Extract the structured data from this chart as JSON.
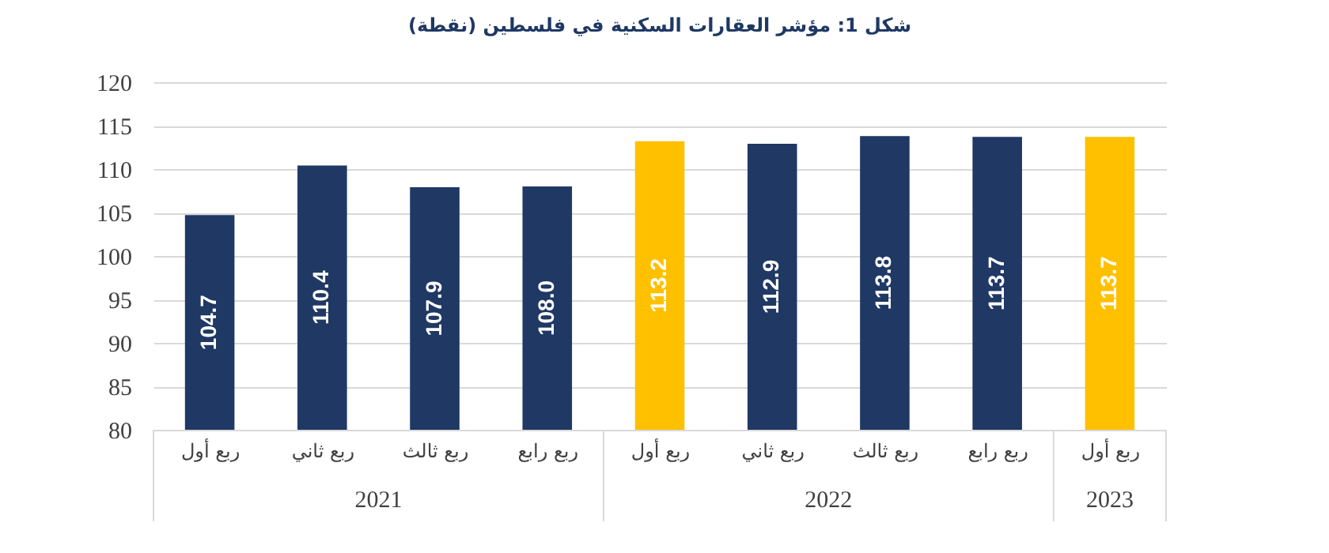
{
  "chart_data": {
    "type": "bar",
    "title": "شكل 1: مؤشر العقارات السكنية في فلسطين (نقطة)",
    "categories": [
      "ربع أول",
      "ربع ثاني",
      "ربع ثالث",
      "ربع رابع",
      "ربع أول",
      "ربع ثاني",
      "ربع ثالث",
      "ربع رابع",
      "ربع أول"
    ],
    "values": [
      104.7,
      110.4,
      107.9,
      108.0,
      113.2,
      112.9,
      113.8,
      113.7,
      113.7
    ],
    "value_labels": [
      "104.7",
      "110.4",
      "107.9",
      "108.0",
      "113.2",
      "112.9",
      "113.8",
      "113.7",
      "113.7"
    ],
    "colors": [
      "#1f3864",
      "#1f3864",
      "#1f3864",
      "#1f3864",
      "#ffc000",
      "#1f3864",
      "#1f3864",
      "#1f3864",
      "#ffc000"
    ],
    "annotations": [
      "2021",
      "2022",
      "2023"
    ],
    "ylim": [
      80,
      120
    ],
    "yticks": [
      80,
      85,
      90,
      95,
      100,
      105,
      110,
      115,
      120
    ],
    "grid": "y"
  }
}
